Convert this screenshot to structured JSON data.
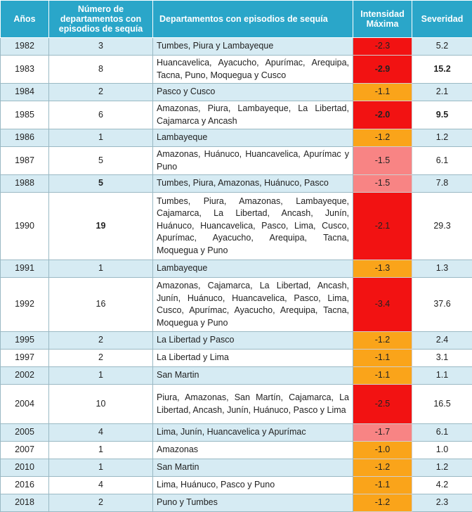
{
  "header": {
    "year": "Años",
    "count": "Número de departamentos con episodios de sequía",
    "departments": "Departamentos con episodios de sequía",
    "intensity": "Intensidad Máxima",
    "severity": "Severidad"
  },
  "colors": {
    "header_bg": "#2aa6c9",
    "row_alt": "#d6ebf3",
    "intensity_high": "#f21212",
    "intensity_mid": "#f88484",
    "intensity_low": "#faa41a"
  },
  "rows": [
    {
      "year": "1982",
      "count": "3",
      "departments": "Tumbes, Piura y Lambayeque",
      "intensity": "-2.3",
      "severity": "5.2",
      "level": "high",
      "count_bold": false,
      "severity_bold": false,
      "lines": 1
    },
    {
      "year": "1983",
      "count": "8",
      "departments": "Huancavelica, Ayacucho, Apurímac, Arequipa, Tacna, Puno, Moquegua y Cusco",
      "intensity": "-2.9",
      "severity": "15.2",
      "level": "high",
      "count_bold": false,
      "severity_bold": true,
      "intensity_bold": true,
      "lines": 2
    },
    {
      "year": "1984",
      "count": "2",
      "departments": "Pasco y Cusco",
      "intensity": "-1.1",
      "severity": "2.1",
      "level": "low",
      "count_bold": false,
      "severity_bold": false,
      "lines": 1
    },
    {
      "year": "1985",
      "count": "6",
      "departments": "Amazonas, Piura, Lambayeque, La Libertad, Cajamarca y Ancash",
      "intensity": "-2.0",
      "severity": "9.5",
      "level": "high",
      "count_bold": false,
      "severity_bold": true,
      "intensity_bold": true,
      "lines": 2
    },
    {
      "year": "1986",
      "count": "1",
      "departments": "Lambayeque",
      "intensity": "-1.2",
      "severity": "1.2",
      "level": "low",
      "count_bold": false,
      "severity_bold": false,
      "lines": 1
    },
    {
      "year": "1987",
      "count": "5",
      "departments": "Amazonas, Huánuco, Huancavelica, Apurímac y Puno",
      "intensity": "-1.5",
      "severity": "6.1",
      "level": "mid",
      "count_bold": false,
      "severity_bold": false,
      "lines": 2
    },
    {
      "year": "1988",
      "count": "5",
      "departments": "Tumbes, Piura, Amazonas, Huánuco, Pasco",
      "intensity": "-1.5",
      "severity": "7.8",
      "level": "mid",
      "count_bold": true,
      "severity_bold": false,
      "lines": 1
    },
    {
      "year": "1990",
      "count": "19",
      "departments": "Tumbes, Piura, Amazonas, Lambayeque, Cajamarca, La Libertad, Ancash, Junín, Huánuco, Huancavelica, Pasco, Lima, Cusco, Apurímac, Ayacucho, Arequipa, Tacna, Moquegua y Puno",
      "intensity": "-2.1",
      "severity": "29.3",
      "level": "high",
      "count_bold": true,
      "severity_bold": false,
      "lines": 5
    },
    {
      "year": "1991",
      "count": "1",
      "departments": "Lambayeque",
      "intensity": "-1.3",
      "severity": "1.3",
      "level": "low",
      "count_bold": false,
      "severity_bold": false,
      "lines": 1
    },
    {
      "year": "1992",
      "count": "16",
      "departments": "Amazonas, Cajamarca, La Libertad, Ancash, Junín, Huánuco, Huancavelica, Pasco, Lima, Cusco, Apurímac, Ayacucho, Arequipa, Tacna, Moquegua y Puno",
      "intensity": "-3.4",
      "severity": "37.6",
      "level": "high",
      "count_bold": false,
      "severity_bold": false,
      "lines": 4
    },
    {
      "year": "1995",
      "count": "2",
      "departments": "La Libertad y Pasco",
      "intensity": "-1.2",
      "severity": "2.4",
      "level": "low",
      "count_bold": false,
      "severity_bold": false,
      "lines": 1
    },
    {
      "year": "1997",
      "count": "2",
      "departments": "La Libertad y Lima",
      "intensity": "-1.1",
      "severity": "3.1",
      "level": "low",
      "count_bold": false,
      "severity_bold": false,
      "lines": 1
    },
    {
      "year": "2002",
      "count": "1",
      "departments": "San Martin",
      "intensity": "-1.1",
      "severity": "1.1",
      "level": "low",
      "count_bold": false,
      "severity_bold": false,
      "lines": 1
    },
    {
      "year": "2004",
      "count": "10",
      "departments": "Piura, Amazonas, San Martín, Cajamarca, La Libertad, Ancash, Junín, Huánuco, Pasco y Lima",
      "intensity": "-2.5",
      "severity": "16.5",
      "level": "high",
      "count_bold": false,
      "severity_bold": false,
      "lines": 3
    },
    {
      "year": "2005",
      "count": "4",
      "departments": "Lima, Junín, Huancavelica y Apurímac",
      "intensity": "-1.7",
      "severity": "6.1",
      "level": "mid",
      "count_bold": false,
      "severity_bold": false,
      "lines": 1
    },
    {
      "year": "2007",
      "count": "1",
      "departments": "Amazonas",
      "intensity": "-1.0",
      "severity": "1.0",
      "level": "low",
      "count_bold": false,
      "severity_bold": false,
      "lines": 1
    },
    {
      "year": "2010",
      "count": "1",
      "departments": "San Martin",
      "intensity": "-1.2",
      "severity": "1.2",
      "level": "low",
      "count_bold": false,
      "severity_bold": false,
      "lines": 1
    },
    {
      "year": "2016",
      "count": "4",
      "departments": "Lima, Huánuco, Pasco y Puno",
      "intensity": "-1.1",
      "severity": "4.2",
      "level": "low",
      "count_bold": false,
      "severity_bold": false,
      "lines": 1
    },
    {
      "year": "2018",
      "count": "2",
      "departments": "Puno y Tumbes",
      "intensity": "-1.2",
      "severity": "2.3",
      "level": "low",
      "count_bold": false,
      "severity_bold": false,
      "lines": 1
    }
  ]
}
